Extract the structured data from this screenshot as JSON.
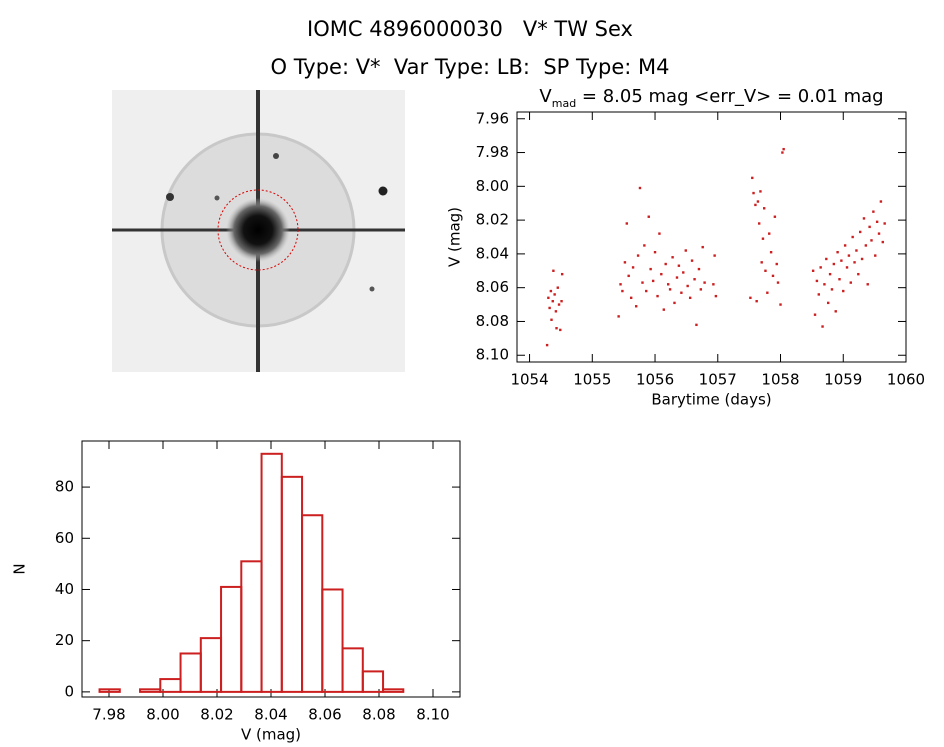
{
  "header": {
    "title": "IOMC 4896000030   V* TW Sex",
    "subtitle": "O Type: V*  Var Type: LB:  SP Type: M4"
  },
  "chart_data": [
    {
      "type": "scatter",
      "title": [
        "V",
        "mad",
        " = 8.05 mag <err_V> = 0.01 mag"
      ],
      "x_label": "Barytime (days)",
      "y_label": "V (mag)",
      "xlim": [
        1053.8,
        1060
      ],
      "xticks": [
        1054,
        1055,
        1056,
        1057,
        1058,
        1059,
        1060
      ],
      "ylim": [
        7.956,
        8.104
      ],
      "y_inverted": true,
      "yticks": [
        7.96,
        7.98,
        {
          "value": 8.0,
          "label": "8.00"
        },
        8.02,
        8.04,
        8.06,
        8.08,
        {
          "value": 8.1,
          "label": "8.10"
        }
      ],
      "color": "#cc1f1f",
      "x": [
        1054.28,
        1054.3,
        1054.32,
        1054.34,
        1054.35,
        1054.37,
        1054.38,
        1054.4,
        1054.42,
        1054.43,
        1054.45,
        1054.47,
        1054.49,
        1054.51,
        1054.52,
        1055.42,
        1055.45,
        1055.48,
        1055.52,
        1055.55,
        1055.58,
        1055.62,
        1055.65,
        1055.7,
        1055.73,
        1055.76,
        1055.8,
        1055.83,
        1055.86,
        1055.9,
        1055.93,
        1055.97,
        1056.0,
        1056.04,
        1056.07,
        1056.1,
        1056.14,
        1056.17,
        1056.21,
        1056.24,
        1056.28,
        1056.31,
        1056.35,
        1056.38,
        1056.42,
        1056.45,
        1056.49,
        1056.52,
        1056.56,
        1056.59,
        1056.63,
        1056.66,
        1056.7,
        1056.73,
        1056.76,
        1056.79,
        1056.93,
        1056.95,
        1056.97,
        1057.52,
        1057.55,
        1057.57,
        1057.6,
        1057.62,
        1057.64,
        1057.66,
        1057.68,
        1057.7,
        1057.72,
        1057.74,
        1057.76,
        1057.79,
        1057.82,
        1057.85,
        1057.88,
        1057.91,
        1057.94,
        1057.96,
        1058.0,
        1058.03,
        1058.05,
        1058.52,
        1058.55,
        1058.58,
        1058.61,
        1058.64,
        1058.67,
        1058.7,
        1058.73,
        1058.76,
        1058.79,
        1058.82,
        1058.85,
        1058.88,
        1058.91,
        1058.94,
        1058.97,
        1059.0,
        1059.03,
        1059.06,
        1059.09,
        1059.12,
        1059.15,
        1059.18,
        1059.21,
        1059.24,
        1059.27,
        1059.3,
        1059.33,
        1059.36,
        1059.39,
        1059.42,
        1059.45,
        1059.48,
        1059.51,
        1059.54,
        1059.57,
        1059.6,
        1059.63,
        1059.66
      ],
      "y": [
        8.094,
        8.066,
        8.072,
        8.062,
        8.079,
        8.068,
        8.05,
        8.064,
        8.074,
        8.084,
        8.06,
        8.07,
        8.085,
        8.068,
        8.052,
        8.077,
        8.058,
        8.062,
        8.045,
        8.022,
        8.053,
        8.066,
        8.048,
        8.071,
        8.041,
        8.001,
        8.057,
        8.035,
        8.062,
        8.018,
        8.049,
        8.056,
        8.039,
        8.065,
        8.028,
        8.052,
        8.073,
        8.046,
        8.058,
        8.061,
        8.042,
        8.069,
        8.054,
        8.047,
        8.063,
        8.051,
        8.038,
        8.059,
        8.066,
        8.044,
        8.055,
        8.082,
        8.049,
        8.061,
        8.036,
        8.057,
        8.058,
        8.041,
        8.065,
        8.066,
        7.995,
        8.004,
        8.011,
        8.068,
        8.009,
        8.022,
        8.003,
        8.045,
        8.031,
        8.013,
        8.05,
        8.063,
        8.028,
        8.039,
        8.053,
        8.018,
        8.046,
        8.057,
        8.07,
        7.98,
        7.978,
        8.05,
        8.076,
        8.056,
        8.064,
        8.048,
        8.083,
        8.058,
        8.043,
        8.069,
        8.052,
        8.061,
        8.046,
        8.074,
        8.039,
        8.055,
        8.044,
        8.062,
        8.035,
        8.048,
        8.041,
        8.057,
        8.03,
        8.045,
        8.038,
        8.052,
        8.027,
        8.043,
        8.019,
        8.035,
        8.058,
        8.024,
        8.032,
        8.015,
        8.041,
        8.021,
        8.028,
        8.009,
        8.033,
        8.022
      ]
    },
    {
      "type": "histogram",
      "x_label": "V (mag)",
      "y_label": "N",
      "xlim": [
        7.97,
        8.11
      ],
      "xticks": [
        7.98,
        {
          "value": 8.0,
          "label": "8.00"
        },
        8.02,
        8.04,
        8.06,
        8.08,
        {
          "value": 8.1,
          "label": "8.10"
        }
      ],
      "ylim": [
        -2,
        98
      ],
      "yticks": [
        0,
        20,
        40,
        60,
        80
      ],
      "color": "#cc1f1f",
      "bins": [
        7.9765,
        7.984,
        7.9915,
        7.999,
        8.0065,
        8.014,
        8.0215,
        8.029,
        8.0365,
        8.044,
        8.0515,
        8.059,
        8.0665,
        8.074,
        8.0815,
        8.089
      ],
      "counts": [
        1,
        0,
        1,
        5,
        15,
        21,
        41,
        51,
        93,
        84,
        69,
        40,
        17,
        8,
        1
      ]
    }
  ]
}
